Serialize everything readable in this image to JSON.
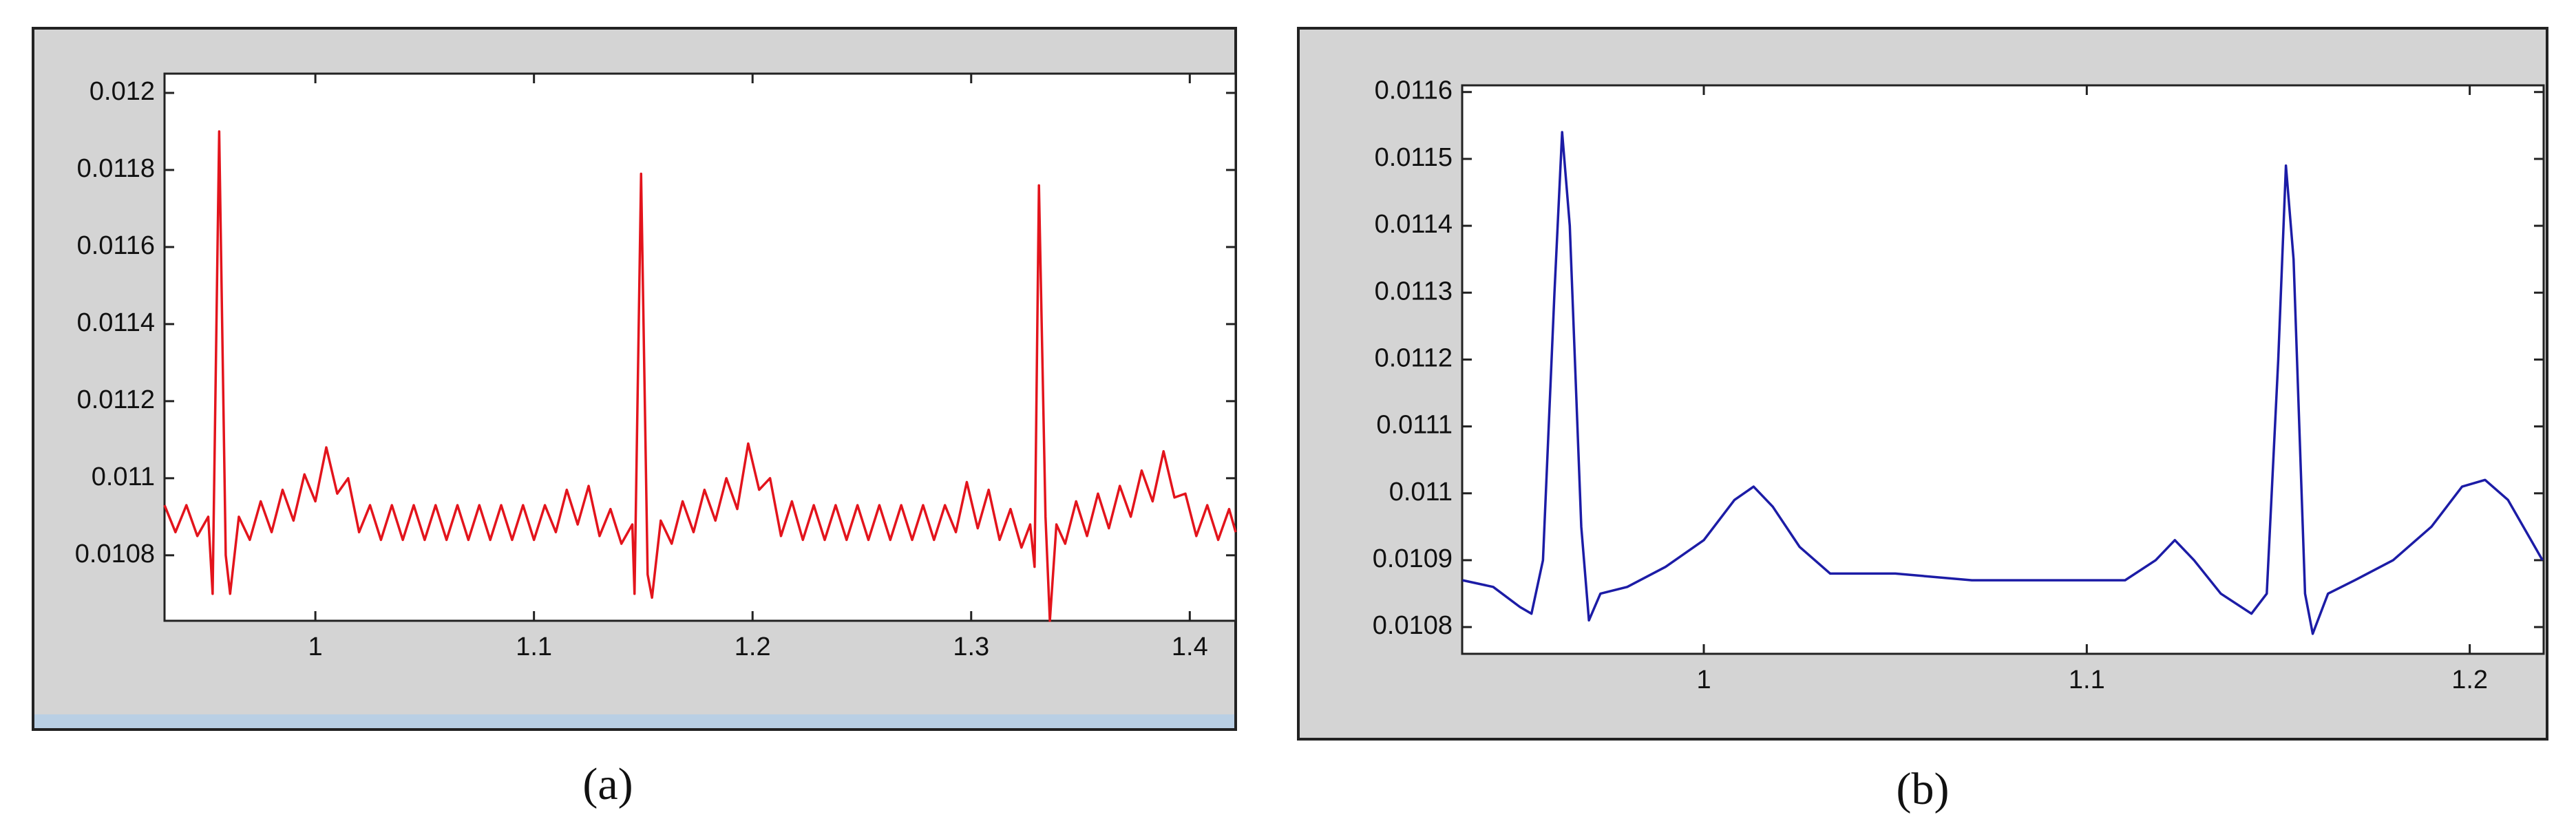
{
  "chart_data": [
    {
      "type": "line",
      "caption": "(a)",
      "color": "#e3141c",
      "xlim": [
        0.931,
        1.421
      ],
      "xticks": [
        1,
        1.1,
        1.2,
        1.3,
        1.4
      ],
      "ylim": [
        0.01063,
        0.01205
      ],
      "yticks": [
        0.0108,
        0.011,
        0.0112,
        0.0114,
        0.0116,
        0.0118,
        0.012
      ],
      "x": [
        0.931,
        0.936,
        0.941,
        0.946,
        0.951,
        0.953,
        0.956,
        0.959,
        0.961,
        0.965,
        0.97,
        0.975,
        0.98,
        0.985,
        0.99,
        0.995,
        1.0,
        1.005,
        1.01,
        1.015,
        1.02,
        1.025,
        1.03,
        1.035,
        1.04,
        1.045,
        1.05,
        1.055,
        1.06,
        1.065,
        1.07,
        1.075,
        1.08,
        1.085,
        1.09,
        1.095,
        1.1,
        1.105,
        1.11,
        1.115,
        1.12,
        1.125,
        1.13,
        1.135,
        1.14,
        1.145,
        1.146,
        1.149,
        1.152,
        1.154,
        1.158,
        1.163,
        1.168,
        1.173,
        1.178,
        1.183,
        1.188,
        1.193,
        1.198,
        1.203,
        1.208,
        1.213,
        1.218,
        1.223,
        1.228,
        1.233,
        1.238,
        1.243,
        1.248,
        1.253,
        1.258,
        1.263,
        1.268,
        1.273,
        1.278,
        1.283,
        1.288,
        1.293,
        1.298,
        1.303,
        1.308,
        1.313,
        1.318,
        1.323,
        1.327,
        1.329,
        1.331,
        1.334,
        1.336,
        1.339,
        1.343,
        1.348,
        1.353,
        1.358,
        1.363,
        1.368,
        1.373,
        1.378,
        1.383,
        1.388,
        1.393,
        1.398,
        1.403,
        1.408,
        1.413,
        1.418,
        1.421
      ],
      "values": [
        0.01093,
        0.01086,
        0.01093,
        0.01085,
        0.0109,
        0.0107,
        0.0119,
        0.0108,
        0.0107,
        0.0109,
        0.01084,
        0.01094,
        0.01086,
        0.01097,
        0.01089,
        0.01101,
        0.01094,
        0.01108,
        0.01096,
        0.011,
        0.01086,
        0.01093,
        0.01084,
        0.01093,
        0.01084,
        0.01093,
        0.01084,
        0.01093,
        0.01084,
        0.01093,
        0.01084,
        0.01093,
        0.01084,
        0.01093,
        0.01084,
        0.01093,
        0.01084,
        0.01093,
        0.01086,
        0.01097,
        0.01088,
        0.01098,
        0.01085,
        0.01092,
        0.01083,
        0.01088,
        0.0107,
        0.01179,
        0.01075,
        0.01069,
        0.01089,
        0.01083,
        0.01094,
        0.01086,
        0.01097,
        0.01089,
        0.011,
        0.01092,
        0.01109,
        0.01097,
        0.011,
        0.01085,
        0.01094,
        0.01084,
        0.01093,
        0.01084,
        0.01093,
        0.01084,
        0.01093,
        0.01084,
        0.01093,
        0.01084,
        0.01093,
        0.01084,
        0.01093,
        0.01084,
        0.01093,
        0.01086,
        0.01099,
        0.01087,
        0.01097,
        0.01084,
        0.01092,
        0.01082,
        0.01088,
        0.01077,
        0.01176,
        0.0109,
        0.01063,
        0.01088,
        0.01083,
        0.01094,
        0.01085,
        0.01096,
        0.01087,
        0.01098,
        0.0109,
        0.01102,
        0.01094,
        0.01107,
        0.01095,
        0.01096,
        0.01085,
        0.01093,
        0.01084,
        0.01092,
        0.01086
      ]
    },
    {
      "type": "line",
      "caption": "(b)",
      "color": "#1c1ca6",
      "xlim": [
        0.9369,
        1.2193
      ],
      "xticks": [
        1,
        1.1,
        1.2
      ],
      "ylim": [
        0.01076,
        0.01161
      ],
      "yticks": [
        0.0108,
        0.0109,
        0.011,
        0.0111,
        0.0112,
        0.0113,
        0.0114,
        0.0115,
        0.0116
      ],
      "x": [
        0.937,
        0.945,
        0.952,
        0.955,
        0.958,
        0.961,
        0.963,
        0.965,
        0.968,
        0.97,
        0.973,
        0.98,
        0.99,
        1.0,
        1.008,
        1.013,
        1.018,
        1.025,
        1.033,
        1.05,
        1.07,
        1.09,
        1.11,
        1.118,
        1.123,
        1.128,
        1.135,
        1.143,
        1.147,
        1.15,
        1.152,
        1.154,
        1.157,
        1.159,
        1.163,
        1.17,
        1.18,
        1.19,
        1.198,
        1.204,
        1.21,
        1.216,
        1.219
      ],
      "values": [
        0.01087,
        0.01086,
        0.01083,
        0.01082,
        0.0109,
        0.0113,
        0.01154,
        0.0114,
        0.01095,
        0.01081,
        0.01085,
        0.01086,
        0.01089,
        0.01093,
        0.01099,
        0.01101,
        0.01098,
        0.01092,
        0.01088,
        0.01088,
        0.01087,
        0.01087,
        0.01087,
        0.0109,
        0.01093,
        0.0109,
        0.01085,
        0.01082,
        0.01085,
        0.0112,
        0.01149,
        0.01135,
        0.01085,
        0.01079,
        0.01085,
        0.01087,
        0.0109,
        0.01095,
        0.01101,
        0.01102,
        0.01099,
        0.01093,
        0.0109
      ]
    }
  ]
}
